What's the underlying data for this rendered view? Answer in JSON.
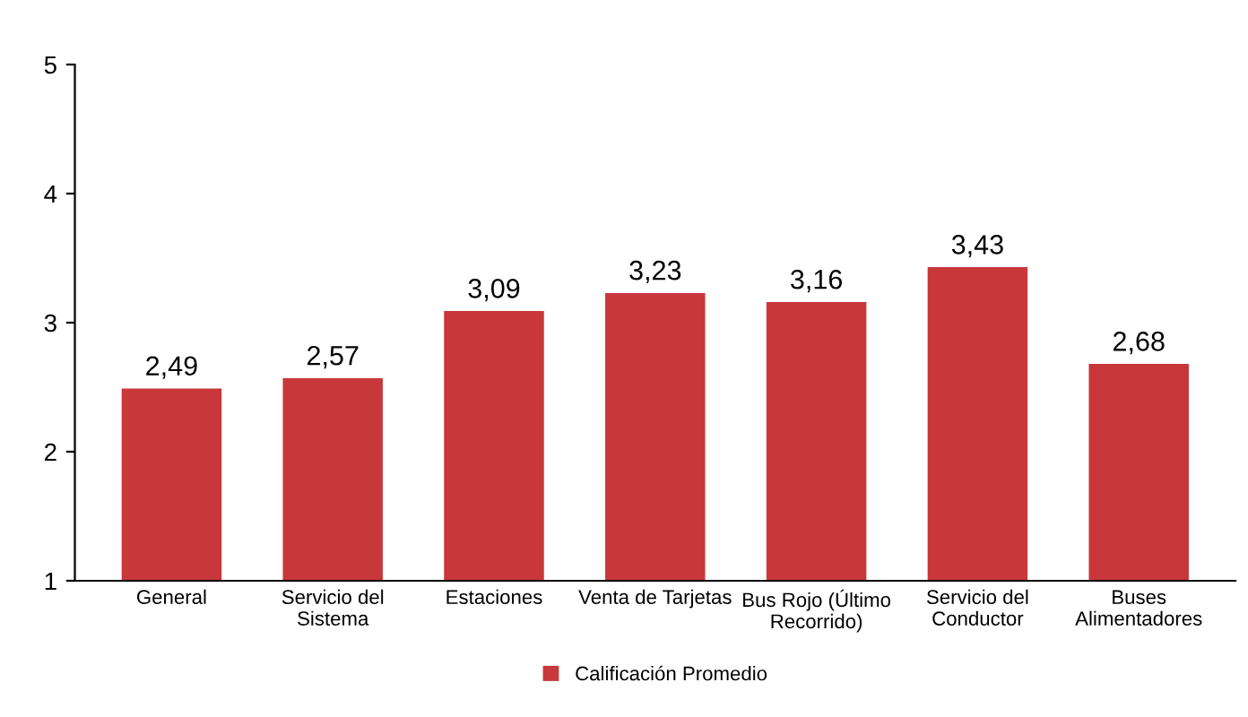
{
  "chart_data": {
    "type": "bar",
    "categories": [
      "General",
      "Servicio del\nSistema",
      "Estaciones",
      "Venta de Tarjetas",
      "Bus Rojo (Último\nRecorrido)",
      "Servicio del\nConductor",
      "Buses\nAlimentadores"
    ],
    "series": [
      {
        "name": "Calificación Promedio",
        "color": "#c8373a",
        "values": [
          2.49,
          2.57,
          3.09,
          3.23,
          3.16,
          3.43,
          2.68
        ],
        "value_labels": [
          "2,49",
          "2,57",
          "3,09",
          "3,23",
          "3,16",
          "3,43",
          "2,68"
        ]
      }
    ],
    "ylim": [
      1,
      5
    ],
    "yticks": [
      1,
      2,
      3,
      4,
      5
    ],
    "grid": false,
    "legend": "bottom"
  }
}
